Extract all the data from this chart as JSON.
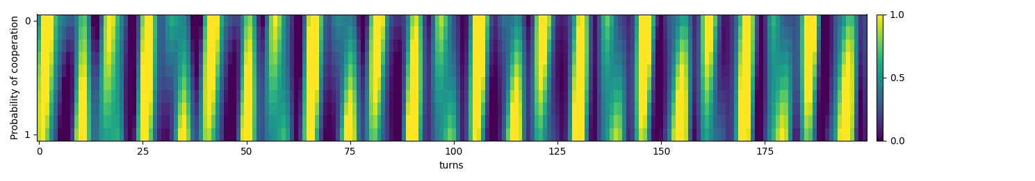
{
  "title": "",
  "xlabel": "turns",
  "ylabel": "Probability of cooperation",
  "cmap": "viridis",
  "vmin": 0.0,
  "vmax": 1.0,
  "colorbar_ticks": [
    0.0,
    0.5,
    1.0
  ],
  "colorbar_labels": [
    "0.0",
    "0.5",
    "1.0"
  ],
  "n_rows": 10,
  "n_cols": 200,
  "figsize": [
    14.89,
    2.61
  ],
  "dpi": 100,
  "yticks": [
    0,
    9
  ],
  "yticklabels": [
    "0",
    "1"
  ],
  "xticks": [
    0,
    25,
    50,
    75,
    100,
    125,
    150,
    175
  ]
}
